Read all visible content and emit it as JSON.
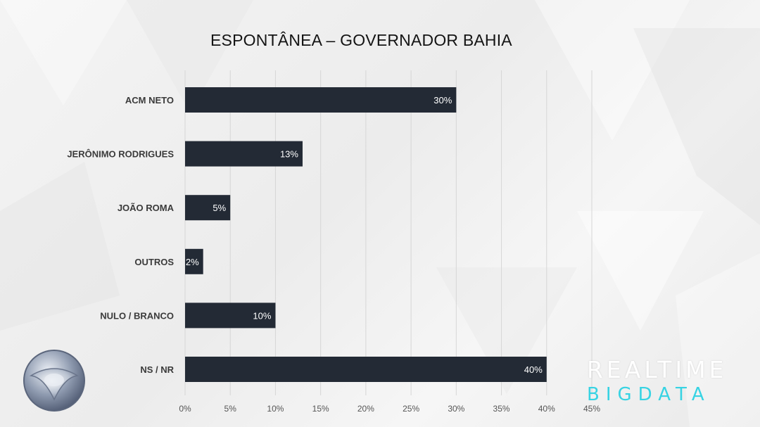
{
  "chart_data": {
    "type": "bar",
    "orientation": "horizontal",
    "title": "ESPONTÂNEA – GOVERNADOR BAHIA",
    "categories": [
      "ACM NETO",
      "JERÔNIMO RODRIGUES",
      "JOÃO ROMA",
      "OUTROS",
      "NULO / BRANCO",
      "NS / NR"
    ],
    "values": [
      30,
      13,
      5,
      2,
      10,
      40
    ],
    "value_labels": [
      "30%",
      "13%",
      "5%",
      "2%",
      "10%",
      "40%"
    ],
    "xlim": [
      0,
      45
    ],
    "x_ticks": [
      "0%",
      "5%",
      "10%",
      "15%",
      "20%",
      "25%",
      "30%",
      "35%",
      "40%",
      "45%"
    ],
    "grid": true,
    "colors": {
      "bar": "#232a35",
      "grid": "#d6d6d6",
      "label": "#3a3a3a"
    }
  },
  "brand": {
    "top": "REALTIME",
    "bottom": "BIGDATA",
    "accent": "#37d3e3"
  }
}
